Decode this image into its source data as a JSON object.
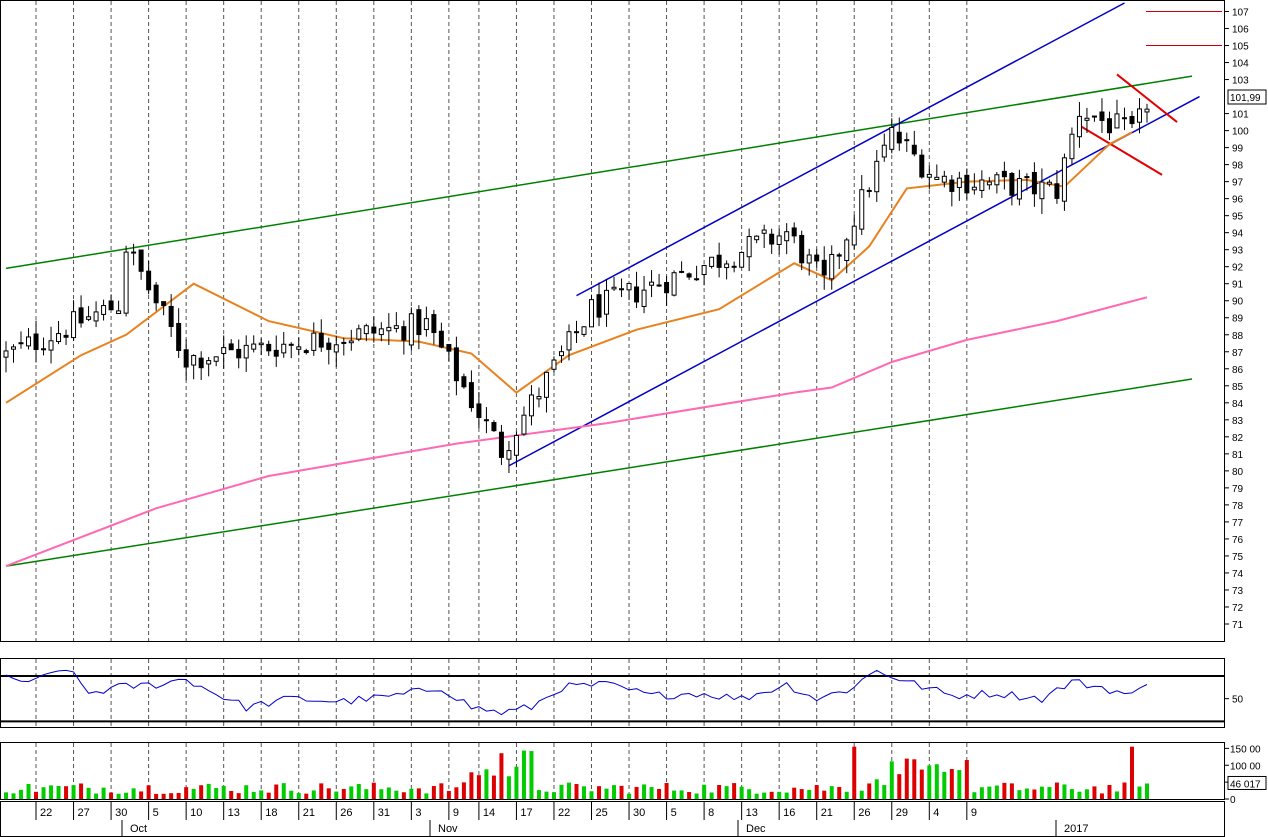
{
  "chart_data": [
    {
      "type": "candlestick",
      "title": "",
      "ylim": [
        70,
        107.5
      ],
      "y_ticks": [
        71,
        72,
        73,
        74,
        75,
        76,
        77,
        78,
        79,
        80,
        81,
        82,
        83,
        84,
        85,
        86,
        87,
        88,
        89,
        90,
        91,
        92,
        93,
        94,
        95,
        96,
        97,
        98,
        99,
        100,
        101,
        103,
        104,
        105,
        106,
        107
      ],
      "last_price_label": "101,99",
      "grid": "vertical-dashed",
      "x_labels": [
        "22",
        "27",
        "30",
        "5",
        "10",
        "13",
        "18",
        "21",
        "26",
        "31",
        "3",
        "9",
        "14",
        "17",
        "22",
        "25",
        "30",
        "5",
        "8",
        "13",
        "16",
        "21",
        "26",
        "29",
        "4",
        "9"
      ],
      "month_labels": [
        "Oct",
        "Nov",
        "Dec",
        "2017"
      ],
      "series": [
        {
          "name": "",
          "kind": "ohlc",
          "color": "#000000",
          "segments": [
            {
              "start": 86.8,
              "end": 90.0,
              "from_session": 0,
              "to_session": 16
            },
            {
              "start": 93.2,
              "end": 86.6,
              "from_session": 16,
              "to_session": 24
            },
            {
              "start": 86.6,
              "end": 88.6,
              "from_session": 24,
              "to_session": 56
            },
            {
              "start": 88.6,
              "end": 81.2,
              "from_session": 56,
              "to_session": 66
            },
            {
              "start": 81.2,
              "end": 89.5,
              "from_session": 66,
              "to_session": 78
            },
            {
              "start": 89.5,
              "end": 94.0,
              "from_session": 78,
              "to_session": 104
            },
            {
              "start": 94.0,
              "end": 91.0,
              "from_session": 104,
              "to_session": 109
            },
            {
              "start": 91.0,
              "end": 99.8,
              "from_session": 109,
              "to_session": 118
            },
            {
              "start": 99.8,
              "end": 97.2,
              "from_session": 118,
              "to_session": 124
            },
            {
              "start": 97.2,
              "end": 96.5,
              "from_session": 124,
              "to_session": 140
            },
            {
              "start": 96.5,
              "end": 101.2,
              "from_session": 140,
              "to_session": 143
            },
            {
              "start": 101.2,
              "end": 99.8,
              "from_session": 143,
              "to_session": 150
            },
            {
              "start": 99.8,
              "end": 101.99,
              "from_session": 150,
              "to_session": 153
            }
          ]
        },
        {
          "name": "",
          "kind": "moving-average",
          "color": "#e8821e",
          "points": [
            [
              0,
              84.0
            ],
            [
              10,
              86.8
            ],
            [
              16,
              88.0
            ],
            [
              25,
              91.0
            ],
            [
              35,
              88.8
            ],
            [
              45,
              87.8
            ],
            [
              55,
              87.6
            ],
            [
              62,
              86.9
            ],
            [
              68,
              84.6
            ],
            [
              75,
              86.8
            ],
            [
              84,
              88.3
            ],
            [
              95,
              89.5
            ],
            [
              105,
              92.2
            ],
            [
              110,
              91.2
            ],
            [
              115,
              93.2
            ],
            [
              120,
              96.6
            ],
            [
              128,
              97.0
            ],
            [
              136,
              97.1
            ],
            [
              141,
              96.7
            ],
            [
              147,
              99.2
            ],
            [
              150,
              99.9
            ]
          ]
        },
        {
          "name": "",
          "kind": "moving-average",
          "color": "#ff69b4",
          "points": [
            [
              0,
              74.4
            ],
            [
              20,
              77.8
            ],
            [
              35,
              79.7
            ],
            [
              60,
              81.6
            ],
            [
              80,
              82.8
            ],
            [
              105,
              84.6
            ],
            [
              110,
              84.9
            ],
            [
              118,
              86.4
            ],
            [
              128,
              87.7
            ],
            [
              140,
              88.8
            ],
            [
              152,
              90.2
            ]
          ]
        }
      ],
      "trend_lines": [
        {
          "color": "#008000",
          "from": [
            0,
            91.9
          ],
          "to": [
            158,
            103.2
          ]
        },
        {
          "color": "#008000",
          "from": [
            0,
            74.4
          ],
          "to": [
            158,
            85.4
          ]
        },
        {
          "color": "#0000c8",
          "from": [
            67,
            80.3
          ],
          "to": [
            159,
            102.0
          ]
        },
        {
          "color": "#0000c8",
          "from": [
            76,
            90.3
          ],
          "to": [
            149,
            107.5
          ]
        },
        {
          "color": "#e00000",
          "from": [
            148,
            103.3
          ],
          "to": [
            156,
            100.5
          ]
        },
        {
          "color": "#e00000",
          "from": [
            143,
            100.3
          ],
          "to": [
            154,
            97.4
          ]
        }
      ],
      "horizontal_marks": [
        {
          "color": "#cc0000",
          "value": 107
        },
        {
          "color": "#cc0000",
          "value": 105
        }
      ]
    },
    {
      "type": "line",
      "title": "",
      "ylim": [
        40,
        64
      ],
      "y_ticks": [
        50
      ],
      "reference_lines": [
        58,
        42
      ],
      "series": [
        {
          "name": "",
          "color": "#0000c8",
          "points": [
            [
              0,
              57
            ],
            [
              4,
              56
            ],
            [
              8,
              61
            ],
            [
              11,
              52
            ],
            [
              15,
              54
            ],
            [
              20,
              55
            ],
            [
              24,
              57
            ],
            [
              27,
              53
            ],
            [
              32,
              47
            ],
            [
              38,
              50
            ],
            [
              45,
              49
            ],
            [
              52,
              51
            ],
            [
              58,
              54
            ],
            [
              62,
              47
            ],
            [
              66,
              45
            ],
            [
              70,
              47
            ],
            [
              74,
              54
            ],
            [
              80,
              55
            ],
            [
              86,
              51
            ],
            [
              92,
              52
            ],
            [
              98,
              50
            ],
            [
              104,
              55
            ],
            [
              108,
              50
            ],
            [
              112,
              53
            ],
            [
              116,
              60
            ],
            [
              120,
              56
            ],
            [
              126,
              51
            ],
            [
              132,
              52
            ],
            [
              138,
              50
            ],
            [
              142,
              56
            ],
            [
              146,
              54
            ],
            [
              150,
              51
            ],
            [
              152,
              55
            ]
          ]
        }
      ]
    },
    {
      "type": "bar",
      "title": "",
      "ylim": [
        0,
        160000
      ],
      "y_ticks_labels": [
        "150 00",
        "100 00",
        "50",
        "0"
      ],
      "last_value_label": "46 017",
      "up_color": "#00cc00",
      "down_color": "#dd0000",
      "session_count": 153
    }
  ]
}
